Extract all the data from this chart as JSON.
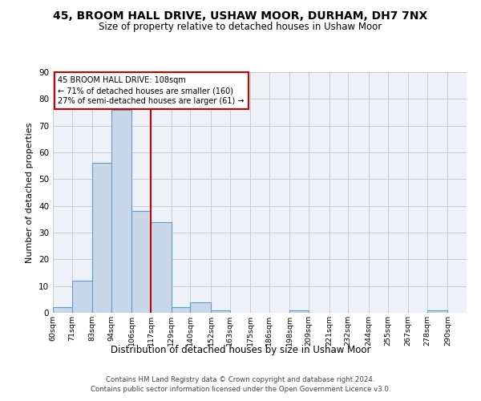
{
  "title": "45, BROOM HALL DRIVE, USHAW MOOR, DURHAM, DH7 7NX",
  "subtitle": "Size of property relative to detached houses in Ushaw Moor",
  "xlabel": "Distribution of detached houses by size in Ushaw Moor",
  "ylabel": "Number of detached properties",
  "bar_color": "#c8d8e8",
  "bar_edge_color": "#5b9bd5",
  "categories": [
    "60sqm",
    "71sqm",
    "83sqm",
    "94sqm",
    "106sqm",
    "117sqm",
    "129sqm",
    "140sqm",
    "152sqm",
    "163sqm",
    "175sqm",
    "186sqm",
    "198sqm",
    "209sqm",
    "221sqm",
    "232sqm",
    "244sqm",
    "255sqm",
    "267sqm",
    "278sqm",
    "290sqm"
  ],
  "values": [
    2,
    12,
    56,
    76,
    38,
    34,
    2,
    4,
    1,
    0,
    0,
    0,
    1,
    0,
    0,
    0,
    0,
    0,
    0,
    1,
    0
  ],
  "property_line_x": 117,
  "property_line_color": "#cc0000",
  "annotation_text": "45 BROOM HALL DRIVE: 108sqm\n← 71% of detached houses are smaller (160)\n27% of semi-detached houses are larger (61) →",
  "annotation_box_color": "#cc0000",
  "ylim": [
    0,
    90
  ],
  "yticks": [
    0,
    10,
    20,
    30,
    40,
    50,
    60,
    70,
    80,
    90
  ],
  "grid_color": "#cccccc",
  "bg_color": "#eef2f8",
  "footer1": "Contains HM Land Registry data © Crown copyright and database right 2024.",
  "footer2": "Contains public sector information licensed under the Open Government Licence v3.0.",
  "bin_edges": [
    60,
    71,
    83,
    94,
    106,
    117,
    129,
    140,
    152,
    163,
    175,
    186,
    198,
    209,
    221,
    232,
    244,
    255,
    267,
    278,
    290,
    301
  ]
}
